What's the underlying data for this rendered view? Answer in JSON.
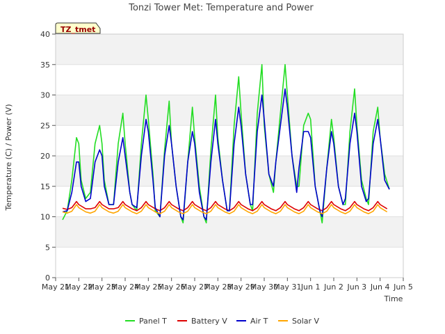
{
  "chart_data": {
    "type": "line",
    "title": "Tonzi Tower Met: Temperature and Power",
    "xlabel": "Time",
    "ylabel": "Temperature (C) / Power (V)",
    "site_label": "TZ_tmet",
    "ylim": [
      0,
      40
    ],
    "yticks": [
      0,
      5,
      10,
      15,
      20,
      25,
      30,
      35,
      40
    ],
    "xlim": [
      0,
      15
    ],
    "xticks": [
      {
        "value": 0,
        "label": "May 21"
      },
      {
        "value": 1,
        "label": "May 22"
      },
      {
        "value": 2,
        "label": "May 23"
      },
      {
        "value": 3,
        "label": "May 24"
      },
      {
        "value": 4,
        "label": "May 25"
      },
      {
        "value": 5,
        "label": "May 26"
      },
      {
        "value": 6,
        "label": "May 27"
      },
      {
        "value": 7,
        "label": "May 28"
      },
      {
        "value": 8,
        "label": "May 29"
      },
      {
        "value": 9,
        "label": "May 30"
      },
      {
        "value": 10,
        "label": "May 31"
      },
      {
        "value": 11,
        "label": "Jun 1"
      },
      {
        "value": 12,
        "label": "Jun 2"
      },
      {
        "value": 13,
        "label": "Jun 3"
      },
      {
        "value": 14,
        "label": "Jun 4"
      },
      {
        "value": 15,
        "label": "Jun 5"
      }
    ],
    "grid": "horizontal bands",
    "legend_position": "bottom",
    "series": [
      {
        "name": "Panel T",
        "color": "#22dd22",
        "x": [
          0.3,
          0.5,
          0.7,
          0.9,
          1.0,
          1.1,
          1.3,
          1.5,
          1.7,
          1.9,
          2.0,
          2.1,
          2.3,
          2.5,
          2.7,
          2.9,
          3.0,
          3.2,
          3.3,
          3.5,
          3.7,
          3.9,
          4.0,
          4.2,
          4.3,
          4.5,
          4.7,
          4.9,
          5.0,
          5.2,
          5.4,
          5.5,
          5.7,
          5.9,
          6.0,
          6.2,
          6.4,
          6.5,
          6.7,
          6.9,
          7.0,
          7.2,
          7.4,
          7.5,
          7.7,
          7.9,
          8.0,
          8.2,
          8.4,
          8.5,
          8.7,
          8.9,
          9.0,
          9.2,
          9.4,
          9.5,
          9.7,
          9.9,
          10.0,
          10.2,
          10.4,
          10.5,
          10.7,
          10.9,
          11.0,
          11.2,
          11.4,
          11.5,
          11.7,
          11.9,
          12.0,
          12.2,
          12.4,
          12.5,
          12.7,
          12.9,
          13.0,
          13.2,
          13.4,
          13.5,
          13.7,
          13.9,
          14.0,
          14.2,
          14.4
        ],
        "y": [
          9.5,
          11,
          16,
          23,
          22,
          16,
          13,
          14,
          22,
          25,
          22,
          16,
          12,
          12,
          22,
          27,
          22,
          14,
          12,
          11,
          22,
          30,
          26,
          17,
          11,
          10,
          21,
          29,
          22,
          15,
          10,
          9,
          19,
          28,
          23,
          15,
          10,
          9,
          21,
          30,
          23,
          16,
          11,
          11,
          25,
          33,
          27,
          17,
          12,
          11,
          27,
          35,
          25,
          17,
          14,
          19,
          27,
          35,
          30,
          20,
          15,
          15,
          25,
          27,
          26,
          15,
          11,
          9,
          18,
          26,
          23,
          15,
          12,
          12,
          24,
          31,
          25,
          16,
          13,
          12,
          24,
          28,
          23,
          17,
          14.5
        ]
      },
      {
        "name": "Battery V",
        "color": "#dd0000",
        "x": [
          0.3,
          0.5,
          0.7,
          0.9,
          1.0,
          1.3,
          1.5,
          1.7,
          1.9,
          2.0,
          2.3,
          2.5,
          2.7,
          2.9,
          3.0,
          3.3,
          3.5,
          3.7,
          3.9,
          4.0,
          4.3,
          4.5,
          4.7,
          4.9,
          5.0,
          5.3,
          5.5,
          5.7,
          5.9,
          6.0,
          6.3,
          6.5,
          6.7,
          6.9,
          7.0,
          7.3,
          7.5,
          7.7,
          7.9,
          8.0,
          8.3,
          8.5,
          8.7,
          8.9,
          9.0,
          9.3,
          9.5,
          9.7,
          9.9,
          10.0,
          10.3,
          10.5,
          10.7,
          10.9,
          11.0,
          11.3,
          11.5,
          11.7,
          11.9,
          12.0,
          12.3,
          12.5,
          12.7,
          12.9,
          13.0,
          13.3,
          13.5,
          13.7,
          13.9,
          14.0,
          14.3
        ],
        "y": [
          11.4,
          11.2,
          11.5,
          12.5,
          12,
          11.3,
          11.3,
          11.5,
          12.5,
          12,
          11.3,
          11.3,
          11.5,
          12.5,
          12,
          11.3,
          11,
          11.5,
          12.5,
          12,
          11.3,
          11,
          11.5,
          12.5,
          12,
          11.3,
          11,
          11.5,
          12.5,
          12,
          11.3,
          11,
          11.5,
          12.5,
          12,
          11.3,
          11,
          11.5,
          12.5,
          12,
          11.3,
          11,
          11.5,
          12.5,
          12,
          11.3,
          11,
          11.5,
          12.5,
          12,
          11.3,
          11,
          11.5,
          12.5,
          12,
          11.3,
          11,
          11.5,
          12.5,
          12,
          11.3,
          11,
          11.5,
          12.5,
          12,
          11.3,
          11,
          11.5,
          12.5,
          12,
          11.3
        ]
      },
      {
        "name": "Air T",
        "color": "#0000cc",
        "x": [
          0.3,
          0.5,
          0.7,
          0.9,
          1.0,
          1.1,
          1.3,
          1.5,
          1.7,
          1.9,
          2.0,
          2.1,
          2.3,
          2.5,
          2.7,
          2.9,
          3.0,
          3.2,
          3.3,
          3.5,
          3.7,
          3.9,
          4.0,
          4.2,
          4.3,
          4.5,
          4.7,
          4.9,
          5.0,
          5.2,
          5.4,
          5.5,
          5.7,
          5.9,
          6.0,
          6.2,
          6.4,
          6.5,
          6.7,
          6.9,
          7.0,
          7.2,
          7.4,
          7.5,
          7.7,
          7.9,
          8.0,
          8.2,
          8.4,
          8.5,
          8.7,
          8.9,
          9.0,
          9.2,
          9.4,
          9.5,
          9.7,
          9.9,
          10.0,
          10.2,
          10.4,
          10.5,
          10.7,
          10.9,
          11.0,
          11.2,
          11.4,
          11.5,
          11.7,
          11.9,
          12.0,
          12.2,
          12.4,
          12.5,
          12.7,
          12.9,
          13.0,
          13.2,
          13.4,
          13.5,
          13.7,
          13.9,
          14.0,
          14.2,
          14.4
        ],
        "y": [
          10.8,
          11,
          14,
          19,
          19,
          15,
          12.5,
          13,
          19,
          21,
          20,
          15,
          12,
          12,
          19,
          23,
          20,
          14,
          12,
          11.5,
          20,
          26,
          24,
          16,
          11.5,
          10,
          20,
          25,
          22,
          15,
          10,
          9.5,
          19,
          24,
          22,
          14,
          10,
          9.5,
          19,
          26,
          22,
          16,
          11,
          11,
          22,
          28,
          25,
          17,
          12,
          12,
          24,
          30,
          26,
          17,
          15,
          19,
          25,
          31,
          28,
          20,
          14,
          18,
          24,
          24,
          23,
          15,
          11,
          10,
          18,
          24,
          22,
          15,
          12,
          13,
          22,
          27,
          24,
          15,
          12.5,
          13,
          22,
          26,
          23,
          16,
          14.5
        ]
      },
      {
        "name": "Solar V",
        "color": "#ffa500",
        "x": [
          0.3,
          0.5,
          0.7,
          0.9,
          1.0,
          1.3,
          1.5,
          1.7,
          1.9,
          2.0,
          2.3,
          2.5,
          2.7,
          2.9,
          3.0,
          3.3,
          3.5,
          3.7,
          3.9,
          4.0,
          4.3,
          4.5,
          4.7,
          4.9,
          5.0,
          5.3,
          5.5,
          5.7,
          5.9,
          6.0,
          6.3,
          6.5,
          6.7,
          6.9,
          7.0,
          7.3,
          7.5,
          7.7,
          7.9,
          8.0,
          8.3,
          8.5,
          8.7,
          8.9,
          9.0,
          9.3,
          9.5,
          9.7,
          9.9,
          10.0,
          10.3,
          10.5,
          10.7,
          10.9,
          11.0,
          11.3,
          11.5,
          11.7,
          11.9,
          12.0,
          12.3,
          12.5,
          12.7,
          12.9,
          13.0,
          13.3,
          13.5,
          13.7,
          13.9,
          14.0,
          14.3
        ],
        "y": [
          10.8,
          10.6,
          10.9,
          12,
          11.5,
          10.8,
          10.6,
          10.9,
          12,
          11.5,
          10.8,
          10.6,
          10.9,
          12,
          11.5,
          10.8,
          10.5,
          10.9,
          12,
          11.5,
          10.8,
          10.5,
          10.9,
          12,
          11.5,
          10.8,
          10.5,
          10.9,
          12,
          11.5,
          10.8,
          10.5,
          10.9,
          12,
          11.5,
          10.8,
          10.5,
          10.9,
          12,
          11.5,
          10.8,
          10.5,
          10.9,
          12,
          11.5,
          10.8,
          10.5,
          10.9,
          12,
          11.5,
          10.8,
          10.5,
          10.9,
          12,
          11.5,
          10.8,
          10.5,
          10.9,
          12,
          11.5,
          10.8,
          10.5,
          10.9,
          12,
          11.5,
          10.8,
          10.5,
          10.9,
          12,
          11.5,
          10.8
        ]
      }
    ]
  }
}
